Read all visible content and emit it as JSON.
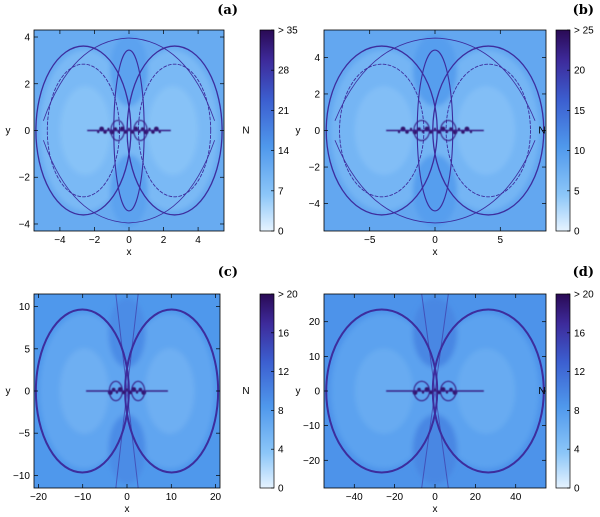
{
  "colors": {
    "cmap_low": "#d8ecff",
    "cmap_mid": "#5aa6f2",
    "cmap_high": "#2a0a55",
    "fractal": "#3b1f8a",
    "frame": "#000000"
  },
  "chart_data": [
    {
      "type": "heatmap",
      "panel": "(a)",
      "xlabel": "x",
      "ylabel": "y",
      "colorbar_label": "N",
      "xlim": [
        -5.5,
        5.5
      ],
      "ylim": [
        -4.3,
        4.3
      ],
      "xticks": [
        -4,
        -2,
        0,
        2,
        4
      ],
      "yticks": [
        -4,
        -2,
        0,
        2,
        4
      ],
      "colorbar_range": [
        0,
        35
      ],
      "colorbar_ticks": [
        "0",
        "7",
        "14",
        "21",
        "28",
        "> 35"
      ],
      "base_level": 0.32
    },
    {
      "type": "heatmap",
      "panel": "(b)",
      "xlabel": "x",
      "ylabel": "y",
      "colorbar_label": "N",
      "xlim": [
        -8.5,
        8.5
      ],
      "ylim": [
        -5.5,
        5.5
      ],
      "xticks": [
        -5,
        0,
        5
      ],
      "yticks": [
        -4,
        -2,
        0,
        2,
        4
      ],
      "colorbar_range": [
        0,
        25
      ],
      "colorbar_ticks": [
        "0",
        "5",
        "10",
        "15",
        "20",
        "> 25"
      ],
      "base_level": 0.34
    },
    {
      "type": "heatmap",
      "panel": "(c)",
      "xlabel": "x",
      "ylabel": "y",
      "colorbar_label": "N",
      "xlim": [
        -21,
        21
      ],
      "ylim": [
        -11.5,
        11.5
      ],
      "xticks": [
        -20,
        -10,
        0,
        10,
        20
      ],
      "yticks": [
        -10,
        -5,
        0,
        5,
        10
      ],
      "colorbar_range": [
        0,
        20
      ],
      "colorbar_ticks": [
        "0",
        "4",
        "8",
        "12",
        "16",
        "> 20"
      ],
      "base_level": 0.42
    },
    {
      "type": "heatmap",
      "panel": "(d)",
      "xlabel": "x",
      "ylabel": "y",
      "colorbar_label": "N",
      "xlim": [
        -55,
        55
      ],
      "ylim": [
        -28,
        28
      ],
      "xticks": [
        -40,
        -20,
        0,
        20,
        40
      ],
      "yticks": [
        -20,
        -10,
        0,
        10,
        20
      ],
      "colorbar_range": [
        0,
        20
      ],
      "colorbar_ticks": [
        "0",
        "4",
        "8",
        "12",
        "16",
        "> 20"
      ],
      "base_level": 0.44
    }
  ]
}
